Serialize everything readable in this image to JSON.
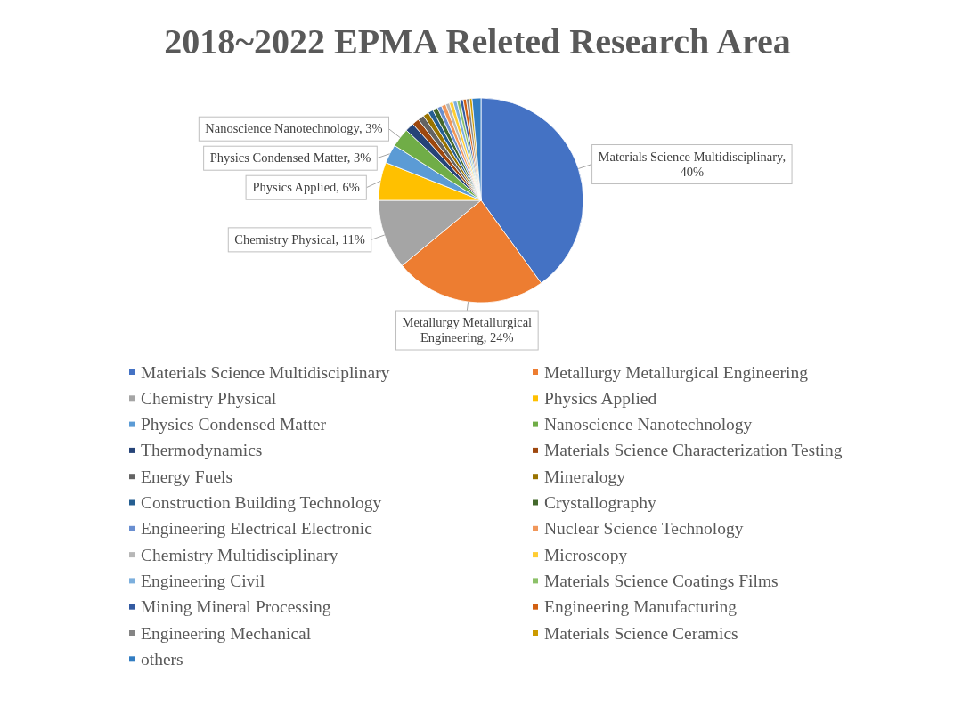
{
  "chart_data": {
    "type": "pie",
    "title": "2018~2022 EPMA Releted Research Area",
    "categories": [
      "Materials Science Multidisciplinary",
      "Metallurgy Metallurgical Engineering",
      "Chemistry Physical",
      "Physics Applied",
      "Physics Condensed Matter",
      "Nanoscience Nanotechnology",
      "Thermodynamics",
      "Materials Science Characterization Testing",
      "Energy Fuels",
      "Mineralogy",
      "Construction Building Technology",
      "Crystallography",
      "Engineering Electrical Electronic",
      "Nuclear Science Technology",
      "Chemistry Multidisciplinary",
      "Microscopy",
      "Engineering Civil",
      "Materials Science Coatings Films",
      "Mining Mineral Processing",
      "Engineering Manufacturing",
      "Engineering Mechanical",
      "Materials Science Ceramics",
      "others"
    ],
    "values": [
      40,
      24,
      11,
      6,
      3,
      3,
      1.4,
      1.1,
      1.0,
      0.9,
      0.8,
      0.8,
      0.7,
      0.7,
      0.6,
      0.6,
      0.6,
      0.5,
      0.5,
      0.5,
      0.5,
      0.4,
      1.4
    ],
    "value_labels": [
      "Materials Science Multidisciplinary, 40%",
      "Metallurgy Metallurgical Engineering, 24%",
      "Chemistry Physical, 11%",
      "Physics Applied, 6%",
      "Physics Condensed Matter, 3%",
      "Nanoscience Nanotechnology, 3%",
      null,
      null,
      null,
      null,
      null,
      null,
      null,
      null,
      null,
      null,
      null,
      null,
      null,
      null,
      null,
      null,
      null
    ],
    "colors": [
      "#4472c4",
      "#ed7d31",
      "#a5a5a5",
      "#ffc000",
      "#5b9bd5",
      "#70ad47",
      "#264478",
      "#9e480e",
      "#636363",
      "#997300",
      "#255e91",
      "#43682b",
      "#698ed0",
      "#f1975a",
      "#b7b7b7",
      "#ffcd33",
      "#7cafdd",
      "#8cc168",
      "#335aa1",
      "#d26012",
      "#848484",
      "#cc9a00",
      "#327dc2"
    ],
    "legend": "bottom"
  }
}
